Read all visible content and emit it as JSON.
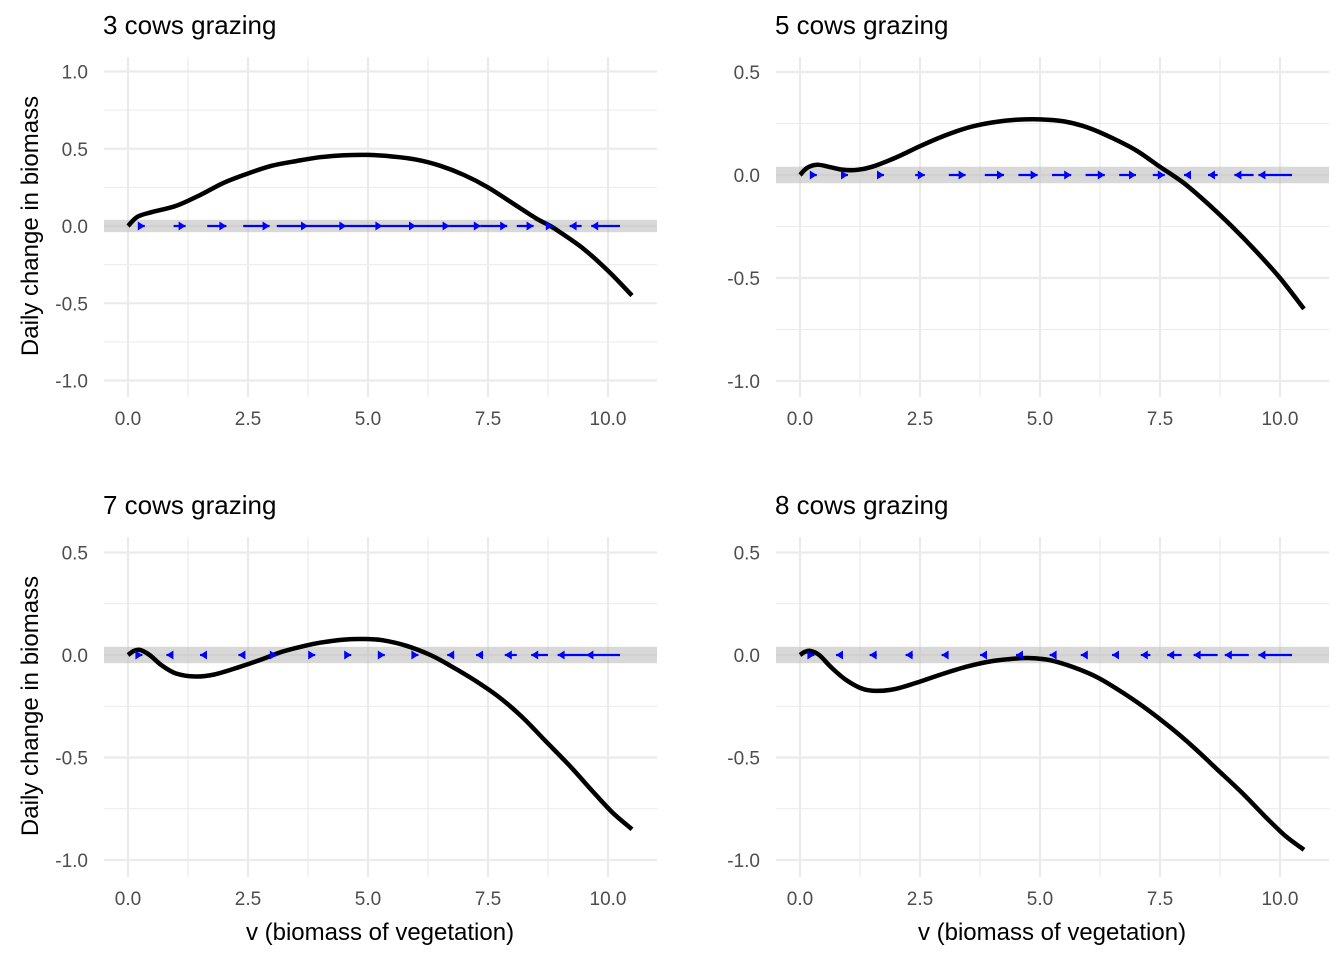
{
  "chart_data": [
    {
      "type": "line",
      "title": "3 cows grazing",
      "xlabel": "",
      "ylabel": "Daily change in biomass",
      "xlim": [
        0,
        10.5
      ],
      "ylim": [
        -1.0,
        1.0
      ],
      "xticks": [
        "0.0",
        "2.5",
        "5.0",
        "7.5",
        "10.0"
      ],
      "xtick_values": [
        0,
        2.5,
        5,
        7.5,
        10
      ],
      "yticks": [
        "-1.0",
        "-0.5",
        "0.0",
        "0.5",
        "1.0"
      ],
      "ytick_values": [
        -1.0,
        -0.5,
        0.0,
        0.5,
        1.0
      ],
      "grid": true,
      "curve": {
        "x": [
          0,
          0.2,
          0.5,
          1.0,
          1.5,
          2.0,
          2.5,
          3.0,
          3.5,
          4.0,
          4.5,
          5.0,
          5.5,
          6.0,
          6.5,
          7.0,
          7.5,
          8.0,
          8.5,
          8.8,
          9.0,
          9.5,
          10.0,
          10.5
        ],
        "y": [
          0,
          0.06,
          0.09,
          0.13,
          0.2,
          0.28,
          0.34,
          0.39,
          0.42,
          0.445,
          0.458,
          0.46,
          0.45,
          0.43,
          0.39,
          0.33,
          0.25,
          0.15,
          0.05,
          0.0,
          -0.04,
          -0.15,
          -0.29,
          -0.45
        ]
      },
      "equilibrium_band": 0.04,
      "flow_arrows": {
        "direction_note": "right of 0 to ~8.8 arrows point right; above ~8.8 arrows point left",
        "segments": [
          {
            "from": 0.25,
            "to": 0.35
          },
          {
            "from": 0.95,
            "to": 1.2
          },
          {
            "from": 1.65,
            "to": 2.05
          },
          {
            "from": 2.4,
            "to": 2.95
          },
          {
            "from": 3.1,
            "to": 3.75
          },
          {
            "from": 3.75,
            "to": 4.55
          },
          {
            "from": 4.55,
            "to": 5.3
          },
          {
            "from": 5.3,
            "to": 6.0
          },
          {
            "from": 6.0,
            "to": 6.7
          },
          {
            "from": 6.7,
            "to": 7.35
          },
          {
            "from": 7.35,
            "to": 7.9
          },
          {
            "from": 8.1,
            "to": 8.45
          },
          {
            "from": 8.8,
            "to": 8.85
          },
          {
            "from": 9.45,
            "to": 9.2
          },
          {
            "from": 10.25,
            "to": 9.65
          }
        ]
      }
    },
    {
      "type": "line",
      "title": "5 cows grazing",
      "xlabel": "",
      "ylabel": "",
      "xlim": [
        0,
        10.5
      ],
      "ylim": [
        -1.0,
        0.5
      ],
      "xticks": [
        "0.0",
        "2.5",
        "5.0",
        "7.5",
        "10.0"
      ],
      "xtick_values": [
        0,
        2.5,
        5,
        7.5,
        10
      ],
      "yticks": [
        "-1.0",
        "-0.5",
        "0.0",
        "0.5"
      ],
      "ytick_values": [
        -1.0,
        -0.5,
        0.0,
        0.5
      ],
      "grid": true,
      "curve": {
        "x": [
          0,
          0.15,
          0.35,
          0.6,
          0.9,
          1.2,
          1.5,
          2.0,
          2.5,
          3.0,
          3.5,
          4.0,
          4.5,
          5.0,
          5.5,
          6.0,
          6.5,
          7.0,
          7.5,
          8.0,
          8.5,
          9.0,
          9.5,
          10.0,
          10.5
        ],
        "y": [
          0,
          0.035,
          0.05,
          0.04,
          0.025,
          0.025,
          0.04,
          0.085,
          0.14,
          0.19,
          0.23,
          0.255,
          0.268,
          0.27,
          0.26,
          0.23,
          0.18,
          0.12,
          0.04,
          -0.04,
          -0.14,
          -0.25,
          -0.37,
          -0.5,
          -0.65
        ]
      },
      "equilibrium_band": 0.04,
      "flow_arrows": {
        "segments": [
          {
            "from": 0.25,
            "to": 0.35
          },
          {
            "from": 0.9,
            "to": 1.0
          },
          {
            "from": 1.65,
            "to": 1.75
          },
          {
            "from": 2.4,
            "to": 2.6
          },
          {
            "from": 3.1,
            "to": 3.45
          },
          {
            "from": 3.85,
            "to": 4.25
          },
          {
            "from": 4.55,
            "to": 4.95
          },
          {
            "from": 5.25,
            "to": 5.65
          },
          {
            "from": 5.95,
            "to": 6.35
          },
          {
            "from": 6.65,
            "to": 7.0
          },
          {
            "from": 7.35,
            "to": 7.6
          },
          {
            "from": 8.1,
            "to": 8.0
          },
          {
            "from": 8.7,
            "to": 8.5
          },
          {
            "from": 9.45,
            "to": 9.05
          },
          {
            "from": 10.25,
            "to": 9.55
          }
        ]
      }
    },
    {
      "type": "line",
      "title": "7 cows grazing",
      "xlabel": "v (biomass of vegetation)",
      "ylabel": "Daily change in biomass",
      "xlim": [
        0,
        10.5
      ],
      "ylim": [
        -1.0,
        0.5
      ],
      "xticks": [
        "0.0",
        "2.5",
        "5.0",
        "7.5",
        "10.0"
      ],
      "xtick_values": [
        0,
        2.5,
        5,
        7.5,
        10
      ],
      "yticks": [
        "-1.0",
        "-0.5",
        "0.0",
        "0.5"
      ],
      "ytick_values": [
        -1.0,
        -0.5,
        0.0,
        0.5
      ],
      "grid": true,
      "curve": {
        "x": [
          0,
          0.12,
          0.25,
          0.45,
          0.7,
          1.0,
          1.4,
          1.8,
          2.3,
          2.8,
          3.2,
          3.6,
          4.0,
          4.5,
          4.9,
          5.3,
          5.8,
          6.3,
          6.7,
          7.2,
          7.7,
          8.2,
          8.7,
          9.2,
          9.7,
          10.1,
          10.5
        ],
        "y": [
          0,
          0.02,
          0.025,
          0.0,
          -0.05,
          -0.09,
          -0.105,
          -0.095,
          -0.06,
          -0.02,
          0.015,
          0.04,
          0.06,
          0.075,
          0.078,
          0.072,
          0.045,
          0.0,
          -0.05,
          -0.12,
          -0.2,
          -0.3,
          -0.42,
          -0.54,
          -0.67,
          -0.77,
          -0.85
        ]
      },
      "equilibrium_band": 0.04,
      "flow_arrows": {
        "segments": [
          {
            "from": 0.2,
            "to": 0.3
          },
          {
            "from": 0.9,
            "to": 0.8
          },
          {
            "from": 1.6,
            "to": 1.5
          },
          {
            "from": 2.35,
            "to": 2.3
          },
          {
            "from": 3.0,
            "to": 3.1
          },
          {
            "from": 3.8,
            "to": 3.9
          },
          {
            "from": 4.55,
            "to": 4.65
          },
          {
            "from": 5.25,
            "to": 5.35
          },
          {
            "from": 5.95,
            "to": 6.05
          },
          {
            "from": 6.75,
            "to": 6.65
          },
          {
            "from": 7.4,
            "to": 7.25
          },
          {
            "from": 8.1,
            "to": 7.85
          },
          {
            "from": 8.75,
            "to": 8.4
          },
          {
            "from": 9.55,
            "to": 8.95
          },
          {
            "from": 10.25,
            "to": 9.55
          }
        ]
      }
    },
    {
      "type": "line",
      "title": "8 cows grazing",
      "xlabel": "v (biomass of vegetation)",
      "ylabel": "",
      "xlim": [
        0,
        10.5
      ],
      "ylim": [
        -1.0,
        0.5
      ],
      "xticks": [
        "0.0",
        "2.5",
        "5.0",
        "7.5",
        "10.0"
      ],
      "xtick_values": [
        0,
        2.5,
        5,
        7.5,
        10
      ],
      "yticks": [
        "-1.0",
        "-0.5",
        "0.0",
        "0.5"
      ],
      "ytick_values": [
        -1.0,
        -0.5,
        0.0,
        0.5
      ],
      "grid": true,
      "curve": {
        "x": [
          0,
          0.1,
          0.22,
          0.4,
          0.65,
          0.95,
          1.3,
          1.6,
          2.0,
          2.5,
          3.0,
          3.5,
          4.0,
          4.5,
          4.8,
          5.2,
          5.7,
          6.2,
          6.7,
          7.2,
          7.7,
          8.2,
          8.7,
          9.2,
          9.7,
          10.1,
          10.5
        ],
        "y": [
          0,
          0.015,
          0.02,
          0.0,
          -0.06,
          -0.12,
          -0.165,
          -0.175,
          -0.165,
          -0.13,
          -0.09,
          -0.055,
          -0.03,
          -0.017,
          -0.015,
          -0.025,
          -0.06,
          -0.11,
          -0.18,
          -0.26,
          -0.35,
          -0.45,
          -0.56,
          -0.67,
          -0.79,
          -0.88,
          -0.95
        ]
      },
      "equilibrium_band": 0.04,
      "flow_arrows": {
        "segments": [
          {
            "from": 0.2,
            "to": 0.3
          },
          {
            "from": 0.85,
            "to": 0.75
          },
          {
            "from": 1.6,
            "to": 1.45
          },
          {
            "from": 2.35,
            "to": 2.2
          },
          {
            "from": 3.05,
            "to": 2.95
          },
          {
            "from": 3.8,
            "to": 3.75
          },
          {
            "from": 4.55,
            "to": 4.5
          },
          {
            "from": 5.25,
            "to": 5.2
          },
          {
            "from": 5.9,
            "to": 5.85
          },
          {
            "from": 6.6,
            "to": 6.5
          },
          {
            "from": 7.3,
            "to": 7.1
          },
          {
            "from": 7.95,
            "to": 7.65
          },
          {
            "from": 8.7,
            "to": 8.2
          },
          {
            "from": 9.35,
            "to": 8.85
          },
          {
            "from": 10.25,
            "to": 9.55
          }
        ]
      }
    }
  ]
}
